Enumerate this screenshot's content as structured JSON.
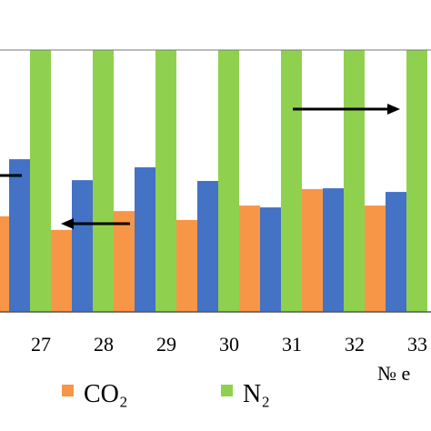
{
  "chart_data": {
    "type": "bar",
    "categories": [
      null,
      "27",
      "28",
      "29",
      "30",
      "31",
      "32",
      "33"
    ],
    "series": [
      {
        "color": "#4472c4",
        "values": [
          null,
          58.3,
          50.3,
          55.2,
          50,
          39.9,
          47.2,
          45.8
        ]
      },
      {
        "name": "N₂",
        "color": "#8fd14f",
        "values": [
          null,
          100,
          100,
          100,
          100,
          100,
          100,
          100
        ]
      },
      {
        "name": "CO₂",
        "color": "#f79646",
        "values": [
          36.5,
          31.3,
          38.5,
          35.1,
          40.6,
          46.9,
          40.6,
          null
        ]
      }
    ],
    "ylim": [
      0,
      100
    ],
    "xlabel": "№ e"
  }
}
